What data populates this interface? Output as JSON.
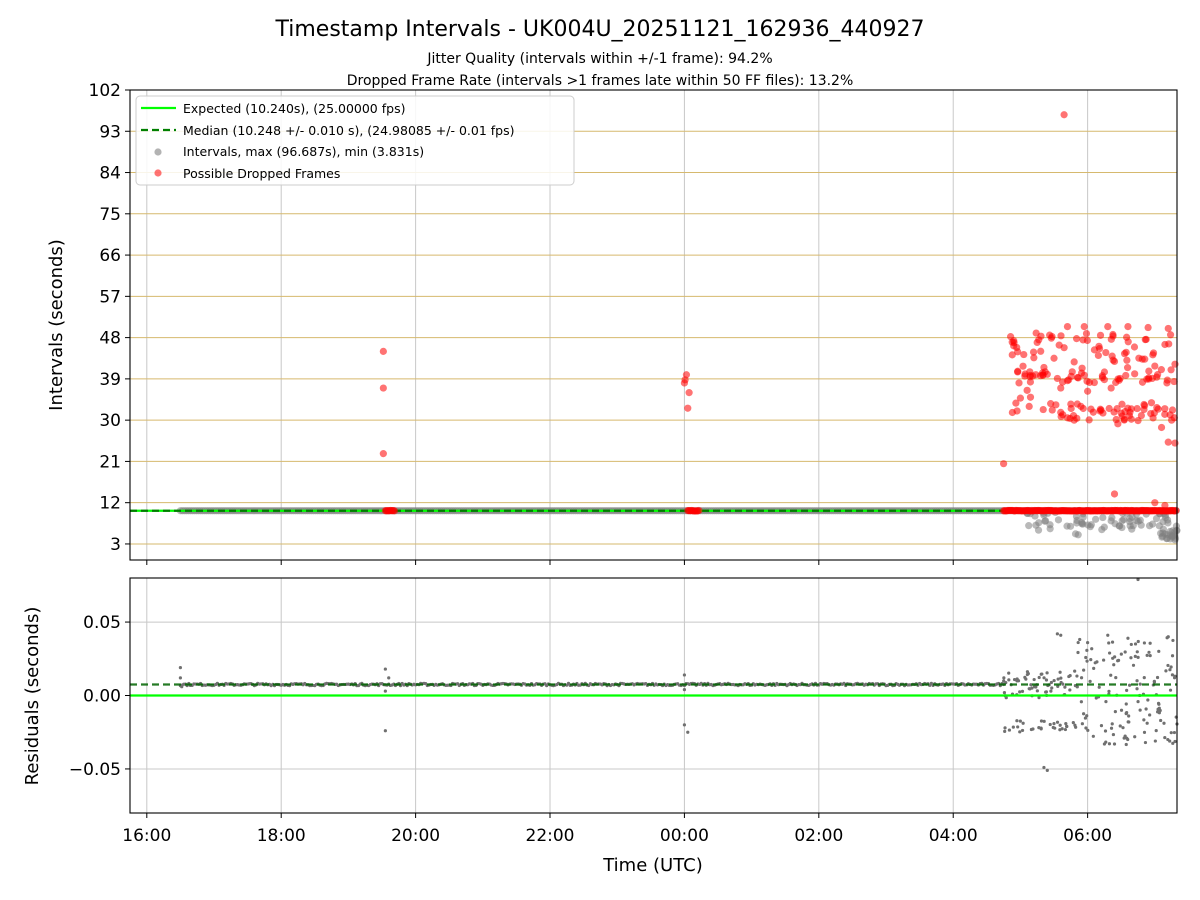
{
  "chart_data": {
    "type": "scatter",
    "title": "Timestamp Intervals - UK004U_20251121_162936_440927",
    "subtitle_lines": [
      "Jitter Quality (intervals within +/-1 frame): 94.2%",
      "Dropped Frame Rate (intervals >1 frames late within 50 FF files): 13.2%"
    ],
    "xlabel": "Time (UTC)",
    "xticks": [
      "16:00",
      "18:00",
      "20:00",
      "22:00",
      "00:00",
      "02:00",
      "04:00",
      "06:00"
    ],
    "xlim_hours": [
      15.75,
      31.33
    ],
    "top": {
      "ylabel": "Intervals (seconds)",
      "ylim": [
        -0.5,
        102
      ],
      "yticks": [
        3,
        12,
        21,
        30,
        39,
        48,
        57,
        66,
        75,
        84,
        93,
        102
      ],
      "grid": "horizontal and vertical",
      "legend_position": "upper-left",
      "legend": [
        "Expected (10.240s), (25.00000 fps)",
        "Median (10.248 +/- 0.010 s), (24.98085 +/- 0.01 fps)",
        "Intervals, max (96.687s), min (3.831s)",
        "Possible Dropped Frames"
      ],
      "expected": 10.24,
      "median": 10.248,
      "intervals_start_hour": 16.5,
      "intervals_end_hour": 31.33,
      "intervals_max": 96.687,
      "intervals_min": 3.831,
      "dropped_frames": [
        {
          "t": 19.52,
          "v": 45.0
        },
        {
          "t": 19.52,
          "v": 37.0
        },
        {
          "t": 19.52,
          "v": 22.7
        },
        {
          "t": 24.03,
          "v": 39.9
        },
        {
          "t": 24.01,
          "v": 38.8
        },
        {
          "t": 24.0,
          "v": 38.1
        },
        {
          "t": 24.07,
          "v": 36.0
        },
        {
          "t": 24.05,
          "v": 32.6
        },
        {
          "t": 28.75,
          "v": 20.5
        },
        {
          "t": 28.9,
          "v": 46.2
        },
        {
          "t": 29.05,
          "v": 44.3
        },
        {
          "t": 29.2,
          "v": 43.6
        },
        {
          "t": 29.35,
          "v": 41.5
        },
        {
          "t": 29.5,
          "v": 43.5
        },
        {
          "t": 29.65,
          "v": 45.8
        },
        {
          "t": 29.8,
          "v": 42.7
        },
        {
          "t": 29.95,
          "v": 39.8
        },
        {
          "t": 30.1,
          "v": 38.2
        },
        {
          "t": 30.25,
          "v": 40.5
        },
        {
          "t": 30.4,
          "v": 42.8
        },
        {
          "t": 30.55,
          "v": 44.5
        },
        {
          "t": 30.7,
          "v": 40.1
        },
        {
          "t": 30.85,
          "v": 43.3
        },
        {
          "t": 31.0,
          "v": 41.8
        },
        {
          "t": 31.15,
          "v": 46.5
        },
        {
          "t": 31.3,
          "v": 42.2
        },
        {
          "t": 29.3,
          "v": 39.7
        },
        {
          "t": 29.4,
          "v": 40.0
        },
        {
          "t": 29.55,
          "v": 39.1
        },
        {
          "t": 29.7,
          "v": 38.6
        },
        {
          "t": 29.85,
          "v": 39.3
        },
        {
          "t": 29.0,
          "v": 34.8
        },
        {
          "t": 29.15,
          "v": 35.0
        },
        {
          "t": 29.45,
          "v": 33.6
        },
        {
          "t": 28.95,
          "v": 32.0
        },
        {
          "t": 29.1,
          "v": 36.5
        },
        {
          "t": 29.6,
          "v": 37.0
        },
        {
          "t": 29.75,
          "v": 33.5
        },
        {
          "t": 29.9,
          "v": 33.0
        },
        {
          "t": 30.05,
          "v": 32.4
        },
        {
          "t": 30.2,
          "v": 32.2
        },
        {
          "t": 30.35,
          "v": 37.0
        },
        {
          "t": 30.5,
          "v": 31.5
        },
        {
          "t": 30.65,
          "v": 30.2
        },
        {
          "t": 30.8,
          "v": 31.0
        },
        {
          "t": 30.95,
          "v": 33.8
        },
        {
          "t": 31.1,
          "v": 28.4
        },
        {
          "t": 31.25,
          "v": 30.0
        },
        {
          "t": 31.2,
          "v": 25.2
        },
        {
          "t": 31.3,
          "v": 25.0
        },
        {
          "t": 29.7,
          "v": 50.4
        },
        {
          "t": 29.95,
          "v": 50.4
        },
        {
          "t": 30.3,
          "v": 50.4
        },
        {
          "t": 30.6,
          "v": 50.4
        },
        {
          "t": 30.9,
          "v": 50.2
        },
        {
          "t": 31.2,
          "v": 50.0
        },
        {
          "t": 29.8,
          "v": 30.0
        },
        {
          "t": 30.0,
          "v": 36.3
        },
        {
          "t": 30.45,
          "v": 29.2
        },
        {
          "t": 30.75,
          "v": 29.9
        },
        {
          "t": 31.05,
          "v": 32.4
        },
        {
          "t": 30.4,
          "v": 13.9
        },
        {
          "t": 31.0,
          "v": 12.0
        },
        {
          "t": 31.15,
          "v": 11.4
        },
        {
          "t": 29.65,
          "v": 96.6
        }
      ],
      "dropped_cluster_ranges": [
        [
          19.55,
          19.7
        ],
        [
          24.05,
          24.22
        ],
        [
          28.75,
          31.33
        ]
      ]
    },
    "bottom": {
      "ylabel": "Residuals (seconds)",
      "ylim": [
        -0.08,
        0.08
      ],
      "yticks": [
        "0.05",
        "0.00",
        "−0.05"
      ],
      "median_residual": 0.0075,
      "expected_residual": 0.0,
      "points": [
        {
          "t": 16.5,
          "v": 0.019
        },
        {
          "t": 16.5,
          "v": 0.012
        },
        {
          "t": 16.52,
          "v": 0.006
        },
        {
          "t": 19.55,
          "v": 0.018
        },
        {
          "t": 19.55,
          "v": 0.003
        },
        {
          "t": 19.55,
          "v": -0.024
        },
        {
          "t": 19.6,
          "v": 0.012
        },
        {
          "t": 24.0,
          "v": 0.014
        },
        {
          "t": 24.0,
          "v": 0.004
        },
        {
          "t": 24.0,
          "v": -0.02
        },
        {
          "t": 24.05,
          "v": -0.025
        },
        {
          "t": 29.35,
          "v": -0.049
        },
        {
          "t": 29.4,
          "v": -0.051
        },
        {
          "t": 29.55,
          "v": 0.042
        },
        {
          "t": 29.6,
          "v": 0.041
        },
        {
          "t": 30.3,
          "v": 0.041
        },
        {
          "t": 30.0,
          "v": 0.036
        },
        {
          "t": 30.6,
          "v": 0.039
        },
        {
          "t": 31.2,
          "v": 0.04
        },
        {
          "t": 30.75,
          "v": 0.079
        },
        {
          "t": 30.25,
          "v": -0.033
        },
        {
          "t": 30.4,
          "v": -0.033
        }
      ]
    }
  }
}
